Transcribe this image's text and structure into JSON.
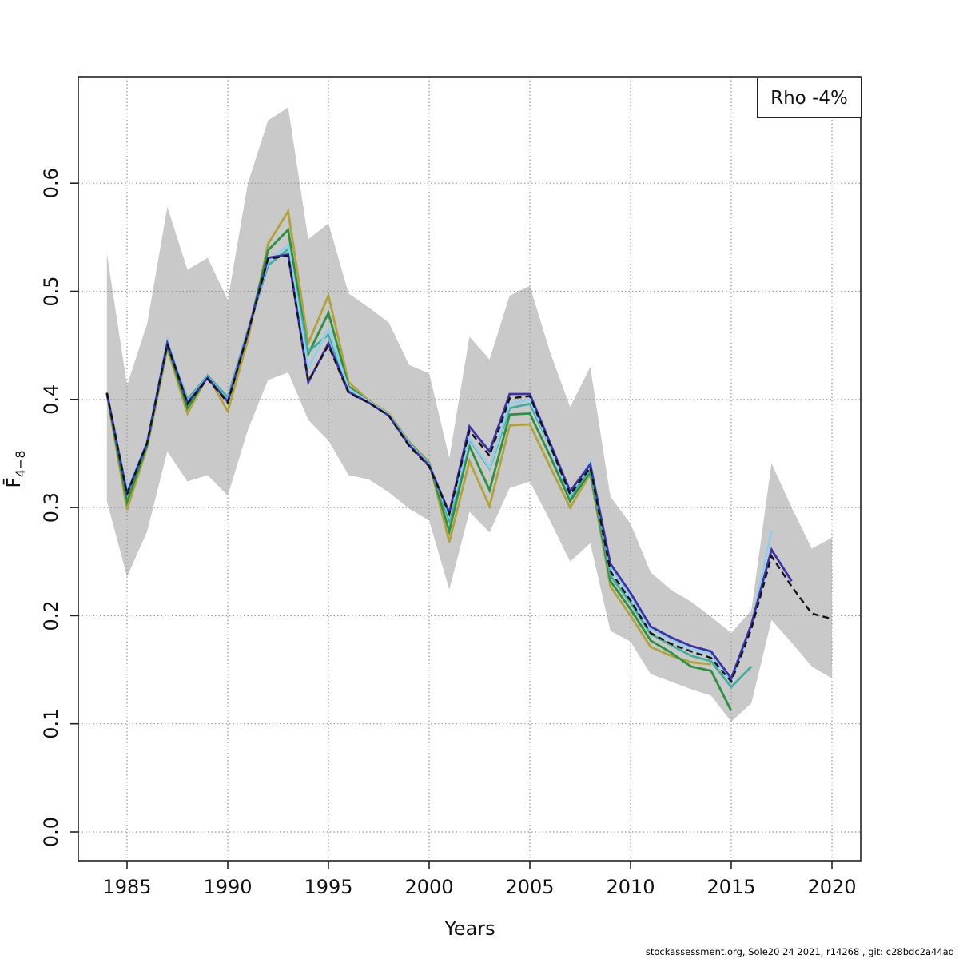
{
  "legend": {
    "label": "Rho -4%"
  },
  "axes": {
    "x_label": "Years",
    "y_label_main": "F̄",
    "y_label_sub": "4−8"
  },
  "footer": {
    "credit": "stockassessment.org, Sole20 24 2021, r14268 , git: c28bdc2a44ad"
  },
  "chart_data": {
    "type": "line",
    "title": "Rho -4%",
    "xlabel": "Years",
    "ylabel": "Fbar 4-8",
    "x": [
      1984,
      1985,
      1986,
      1987,
      1988,
      1989,
      1990,
      1991,
      1992,
      1993,
      1994,
      1995,
      1996,
      1997,
      1998,
      1999,
      2000,
      2001,
      2002,
      2003,
      2004,
      2005,
      2006,
      2007,
      2008,
      2009,
      2010,
      2011,
      2012,
      2013,
      2014,
      2015,
      2016,
      2017,
      2018,
      2019,
      2020
    ],
    "xticks": [
      1985,
      1990,
      1995,
      2000,
      2005,
      2010,
      2015,
      2020
    ],
    "yticks": [
      "0.0",
      "0.1",
      "0.2",
      "0.3",
      "0.4",
      "0.5",
      "0.6"
    ],
    "xlim": [
      1983.4,
      2021.4
    ],
    "ylim": [
      -0.027,
      0.698
    ],
    "grid": "dotted",
    "grid_color": "#999999",
    "band": {
      "name": "confidence-band-base-run",
      "color": "#c9c9c9",
      "upper": [
        0.535,
        0.413,
        0.47,
        0.578,
        0.52,
        0.531,
        0.492,
        0.6,
        0.658,
        0.67,
        0.548,
        0.563,
        0.498,
        0.485,
        0.471,
        0.432,
        0.424,
        0.346,
        0.458,
        0.437,
        0.496,
        0.505,
        0.444,
        0.393,
        0.43,
        0.31,
        0.285,
        0.24,
        0.224,
        0.213,
        0.199,
        0.184,
        0.205,
        0.341,
        0.3,
        0.262,
        0.272
      ],
      "lower": [
        0.306,
        0.236,
        0.278,
        0.352,
        0.324,
        0.33,
        0.311,
        0.372,
        0.418,
        0.425,
        0.381,
        0.362,
        0.33,
        0.326,
        0.314,
        0.299,
        0.288,
        0.224,
        0.296,
        0.277,
        0.318,
        0.324,
        0.288,
        0.25,
        0.267,
        0.186,
        0.176,
        0.146,
        0.139,
        0.132,
        0.126,
        0.102,
        0.119,
        0.196,
        0.175,
        0.153,
        0.142
      ]
    },
    "series": [
      {
        "name": "dashed-black-base",
        "color": "#141414",
        "dashed": true,
        "values": [
          0.406,
          0.312,
          0.36,
          0.451,
          0.396,
          0.419,
          0.397,
          0.461,
          0.53,
          0.533,
          0.417,
          0.45,
          0.406,
          0.397,
          0.385,
          0.357,
          0.338,
          0.294,
          0.371,
          0.348,
          0.401,
          0.403,
          0.358,
          0.312,
          0.337,
          0.241,
          0.214,
          0.184,
          0.174,
          0.167,
          0.161,
          0.139,
          0.188,
          0.255,
          0.227,
          0.202,
          0.197
        ]
      },
      {
        "name": "dark-blue",
        "color": "#3c32aa",
        "dashed": false,
        "values": [
          0.406,
          0.313,
          0.36,
          0.452,
          0.397,
          0.42,
          0.398,
          0.462,
          0.531,
          0.534,
          0.416,
          0.452,
          0.407,
          0.397,
          0.385,
          0.358,
          0.339,
          0.295,
          0.375,
          0.352,
          0.405,
          0.405,
          0.36,
          0.315,
          0.34,
          0.248,
          0.221,
          0.19,
          0.18,
          0.172,
          0.167,
          0.142,
          0.192,
          0.261,
          0.232,
          null,
          null
        ]
      },
      {
        "name": "light-blue",
        "color": "#90cfec",
        "dashed": false,
        "values": [
          0.406,
          0.316,
          0.361,
          0.455,
          0.398,
          0.421,
          0.399,
          0.463,
          0.528,
          0.543,
          0.429,
          0.465,
          0.41,
          0.398,
          0.386,
          0.359,
          0.34,
          0.292,
          0.364,
          0.337,
          0.396,
          0.4,
          0.357,
          0.311,
          0.343,
          0.245,
          0.218,
          0.188,
          0.178,
          0.169,
          0.165,
          0.139,
          0.19,
          0.279,
          null,
          null,
          null
        ]
      },
      {
        "name": "teal",
        "color": "#40ad9d",
        "dashed": false,
        "values": [
          0.406,
          0.313,
          0.36,
          0.452,
          0.4,
          0.422,
          0.402,
          0.464,
          0.524,
          0.539,
          0.444,
          0.46,
          0.409,
          0.398,
          0.386,
          0.36,
          0.341,
          0.288,
          0.363,
          0.336,
          0.392,
          0.396,
          0.357,
          0.31,
          0.335,
          0.237,
          0.212,
          0.183,
          0.173,
          0.163,
          0.158,
          0.134,
          0.153,
          null,
          null,
          null,
          null
        ]
      },
      {
        "name": "green",
        "color": "#2a9143",
        "dashed": false,
        "values": [
          0.406,
          0.305,
          0.358,
          0.45,
          0.392,
          0.421,
          0.398,
          0.461,
          0.538,
          0.557,
          0.442,
          0.48,
          0.412,
          0.398,
          0.386,
          0.36,
          0.341,
          0.278,
          0.357,
          0.316,
          0.386,
          0.387,
          0.348,
          0.306,
          0.333,
          0.232,
          0.206,
          0.177,
          0.166,
          0.153,
          0.149,
          0.112,
          null,
          null,
          null,
          null,
          null
        ]
      },
      {
        "name": "olive",
        "color": "#b1a33c",
        "dashed": false,
        "values": [
          0.405,
          0.298,
          0.356,
          0.447,
          0.387,
          0.422,
          0.389,
          0.455,
          0.544,
          0.574,
          0.452,
          0.496,
          0.416,
          0.399,
          0.387,
          0.361,
          0.342,
          0.268,
          0.343,
          0.301,
          0.376,
          0.377,
          0.338,
          0.3,
          0.331,
          0.227,
          0.2,
          0.171,
          0.163,
          0.157,
          0.155,
          null,
          null,
          null,
          null,
          null,
          null
        ]
      }
    ]
  }
}
